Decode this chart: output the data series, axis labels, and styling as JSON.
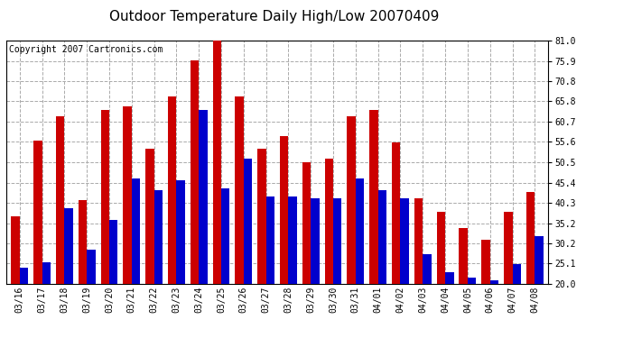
{
  "title": "Outdoor Temperature Daily High/Low 20070409",
  "copyright": "Copyright 2007 Cartronics.com",
  "dates": [
    "03/16",
    "03/17",
    "03/18",
    "03/19",
    "03/20",
    "03/21",
    "03/22",
    "03/23",
    "03/24",
    "03/25",
    "03/26",
    "03/27",
    "03/28",
    "03/29",
    "03/30",
    "03/31",
    "04/01",
    "04/02",
    "04/03",
    "04/04",
    "04/05",
    "04/06",
    "04/07",
    "04/08"
  ],
  "highs": [
    37.0,
    56.0,
    62.0,
    41.0,
    63.5,
    64.5,
    54.0,
    67.0,
    76.0,
    81.0,
    67.0,
    54.0,
    57.0,
    50.5,
    51.5,
    62.0,
    63.5,
    55.5,
    41.5,
    38.0,
    34.0,
    31.0,
    38.0,
    43.0
  ],
  "lows": [
    24.0,
    25.5,
    39.0,
    28.5,
    36.0,
    46.5,
    43.5,
    46.0,
    63.5,
    44.0,
    51.5,
    42.0,
    42.0,
    41.5,
    41.5,
    46.5,
    43.5,
    41.5,
    27.5,
    23.0,
    21.5,
    21.0,
    25.0,
    32.0
  ],
  "high_color": "#cc0000",
  "low_color": "#0000cc",
  "bg_color": "#ffffff",
  "plot_bg_color": "#ffffff",
  "grid_color": "#aaaaaa",
  "ylim": [
    20.0,
    81.0
  ],
  "yticks": [
    20.0,
    25.1,
    30.2,
    35.2,
    40.3,
    45.4,
    50.5,
    55.6,
    60.7,
    65.8,
    70.8,
    75.9,
    81.0
  ],
  "bar_width": 0.38,
  "title_fontsize": 11,
  "tick_fontsize": 7,
  "copyright_fontsize": 7
}
